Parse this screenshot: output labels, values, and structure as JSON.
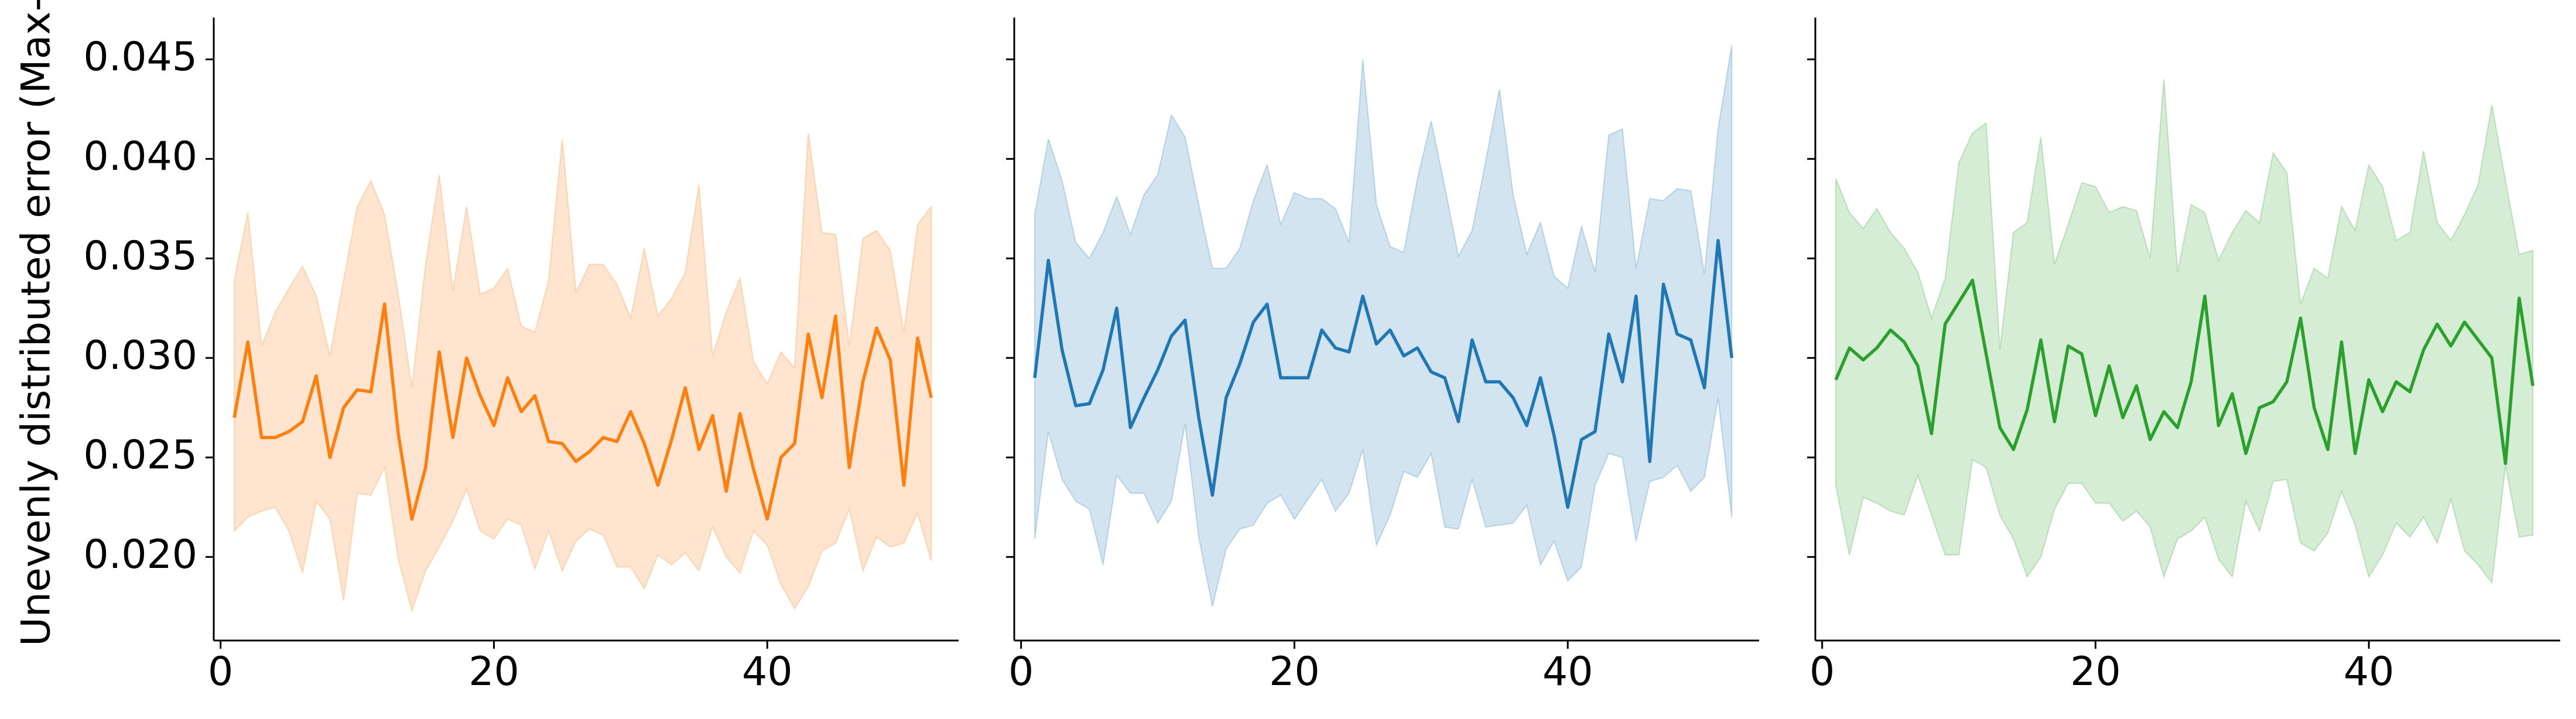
{
  "figure": {
    "ylabel": "Unevenly distributed error (Max-M"
  },
  "chart_data": [
    {
      "type": "line",
      "color": "#ff7f0e",
      "band_color": "#ff7f0e",
      "xlim": [
        -0.5,
        54
      ],
      "ylim": [
        0.0158,
        0.0471
      ],
      "x_ticks": [
        0,
        20,
        40
      ],
      "x_tick_labels": [
        "0",
        "20",
        "40"
      ],
      "y_ticks": [
        0.02,
        0.025,
        0.03,
        0.035,
        0.04,
        0.045
      ],
      "y_tick_labels": [
        "0.020",
        "0.025",
        "0.030",
        "0.035",
        "0.040",
        "0.045"
      ],
      "y_tick_labels_shown": true,
      "grid": false,
      "x": [
        1,
        2,
        3,
        4,
        5,
        6,
        7,
        8,
        9,
        10,
        11,
        12,
        13,
        14,
        15,
        16,
        17,
        18,
        19,
        20,
        21,
        22,
        23,
        24,
        25,
        26,
        27,
        28,
        29,
        30,
        31,
        32,
        33,
        34,
        35,
        36,
        37,
        38,
        39,
        40,
        41,
        42,
        43,
        44,
        45,
        46,
        47,
        48,
        49,
        50,
        51,
        52
      ],
      "mean": [
        0.027,
        0.0308,
        0.026,
        0.026,
        0.0263,
        0.0268,
        0.0291,
        0.025,
        0.0275,
        0.0284,
        0.0283,
        0.0327,
        0.0262,
        0.0219,
        0.0245,
        0.0303,
        0.026,
        0.03,
        0.0281,
        0.0266,
        0.029,
        0.0273,
        0.0281,
        0.0258,
        0.0257,
        0.0248,
        0.0253,
        0.026,
        0.0258,
        0.0273,
        0.0257,
        0.0236,
        0.0259,
        0.0285,
        0.0254,
        0.0271,
        0.0233,
        0.0272,
        0.0244,
        0.0219,
        0.025,
        0.0257,
        0.0312,
        0.028,
        0.0321,
        0.0245,
        0.0288,
        0.0315,
        0.0299,
        0.0236,
        0.031,
        0.028
      ],
      "upper": [
        0.0339,
        0.0373,
        0.0306,
        0.0323,
        0.0335,
        0.0346,
        0.0331,
        0.0301,
        0.0339,
        0.0376,
        0.0389,
        0.0372,
        0.0332,
        0.0285,
        0.0347,
        0.0392,
        0.0334,
        0.0376,
        0.0332,
        0.0335,
        0.0345,
        0.0316,
        0.0313,
        0.0339,
        0.041,
        0.0333,
        0.0347,
        0.0347,
        0.0337,
        0.032,
        0.0355,
        0.0321,
        0.033,
        0.0343,
        0.0387,
        0.0301,
        0.0323,
        0.034,
        0.0298,
        0.0287,
        0.0303,
        0.0295,
        0.0413,
        0.0363,
        0.0362,
        0.0306,
        0.036,
        0.0364,
        0.0354,
        0.0313,
        0.0367,
        0.0376
      ],
      "lower": [
        0.0213,
        0.022,
        0.0223,
        0.0225,
        0.0213,
        0.0192,
        0.0228,
        0.0219,
        0.0178,
        0.0232,
        0.0231,
        0.0245,
        0.0199,
        0.0173,
        0.0193,
        0.0205,
        0.0218,
        0.0234,
        0.0213,
        0.0209,
        0.0219,
        0.0216,
        0.0194,
        0.0213,
        0.0193,
        0.0208,
        0.0214,
        0.0211,
        0.0195,
        0.0195,
        0.0184,
        0.0201,
        0.0196,
        0.0202,
        0.0193,
        0.0215,
        0.02,
        0.0192,
        0.0213,
        0.0206,
        0.0186,
        0.0174,
        0.0185,
        0.0203,
        0.0207,
        0.0224,
        0.0193,
        0.021,
        0.0205,
        0.0207,
        0.0222,
        0.0198
      ]
    },
    {
      "type": "line",
      "color": "#1f77b4",
      "band_color": "#1f77b4",
      "xlim": [
        -0.5,
        54
      ],
      "ylim": [
        0.0158,
        0.0471
      ],
      "x_ticks": [
        0,
        20,
        40
      ],
      "x_tick_labels": [
        "0",
        "20",
        "40"
      ],
      "y_ticks": [
        0.02,
        0.025,
        0.03,
        0.035,
        0.04,
        0.045
      ],
      "y_tick_labels": [
        "",
        "",
        "",
        "",
        "",
        ""
      ],
      "y_tick_labels_shown": false,
      "grid": false,
      "x": [
        1,
        2,
        3,
        4,
        5,
        6,
        7,
        8,
        9,
        10,
        11,
        12,
        13,
        14,
        15,
        16,
        17,
        18,
        19,
        20,
        21,
        22,
        23,
        24,
        25,
        26,
        27,
        28,
        29,
        30,
        31,
        32,
        33,
        34,
        35,
        36,
        37,
        38,
        39,
        40,
        41,
        42,
        43,
        44,
        45,
        46,
        47,
        48,
        49,
        50,
        51,
        52
      ],
      "mean": [
        0.029,
        0.0349,
        0.0304,
        0.0276,
        0.0277,
        0.0294,
        0.0325,
        0.0265,
        0.028,
        0.0294,
        0.0311,
        0.0319,
        0.027,
        0.0231,
        0.028,
        0.0297,
        0.0318,
        0.0327,
        0.029,
        0.029,
        0.029,
        0.0314,
        0.0305,
        0.0303,
        0.0331,
        0.0307,
        0.0314,
        0.0301,
        0.0305,
        0.0293,
        0.029,
        0.0268,
        0.0309,
        0.0288,
        0.0288,
        0.028,
        0.0266,
        0.029,
        0.0261,
        0.0225,
        0.0259,
        0.0263,
        0.0312,
        0.0288,
        0.0331,
        0.0248,
        0.0337,
        0.0312,
        0.0309,
        0.0285,
        0.0359,
        0.03
      ],
      "upper": [
        0.0372,
        0.041,
        0.0389,
        0.0358,
        0.035,
        0.0363,
        0.0381,
        0.0362,
        0.0382,
        0.0392,
        0.0422,
        0.0411,
        0.0377,
        0.0345,
        0.0345,
        0.0355,
        0.0379,
        0.0397,
        0.0367,
        0.0383,
        0.038,
        0.038,
        0.0375,
        0.0358,
        0.045,
        0.0377,
        0.0356,
        0.0353,
        0.039,
        0.0419,
        0.0386,
        0.0351,
        0.0364,
        0.0399,
        0.0435,
        0.0382,
        0.0352,
        0.0368,
        0.0341,
        0.0335,
        0.0366,
        0.0343,
        0.0412,
        0.0415,
        0.0345,
        0.038,
        0.0379,
        0.0385,
        0.0384,
        0.0342,
        0.0415,
        0.0457
      ],
      "lower": [
        0.0209,
        0.0263,
        0.0239,
        0.0228,
        0.0224,
        0.0196,
        0.0241,
        0.0232,
        0.0232,
        0.0217,
        0.0228,
        0.0267,
        0.021,
        0.0175,
        0.0204,
        0.0214,
        0.0216,
        0.0227,
        0.0231,
        0.0219,
        0.0229,
        0.0239,
        0.0223,
        0.0232,
        0.0254,
        0.0206,
        0.0221,
        0.0243,
        0.024,
        0.0252,
        0.0215,
        0.0214,
        0.0239,
        0.0215,
        0.0216,
        0.0217,
        0.0226,
        0.0196,
        0.0208,
        0.0188,
        0.0195,
        0.0236,
        0.0252,
        0.025,
        0.0208,
        0.0238,
        0.024,
        0.0246,
        0.0233,
        0.024,
        0.028,
        0.022
      ]
    },
    {
      "type": "line",
      "color": "#2ca02c",
      "band_color": "#2ca02c",
      "xlim": [
        -0.5,
        54
      ],
      "ylim": [
        0.0158,
        0.0471
      ],
      "x_ticks": [
        0,
        20,
        40
      ],
      "x_tick_labels": [
        "0",
        "20",
        "40"
      ],
      "y_ticks": [
        0.02,
        0.025,
        0.03,
        0.035,
        0.04,
        0.045
      ],
      "y_tick_labels": [
        "",
        "",
        "",
        "",
        "",
        ""
      ],
      "y_tick_labels_shown": false,
      "grid": false,
      "x": [
        1,
        2,
        3,
        4,
        5,
        6,
        7,
        8,
        9,
        10,
        11,
        12,
        13,
        14,
        15,
        16,
        17,
        18,
        19,
        20,
        21,
        22,
        23,
        24,
        25,
        26,
        27,
        28,
        29,
        30,
        31,
        32,
        33,
        34,
        35,
        36,
        37,
        38,
        39,
        40,
        41,
        42,
        43,
        44,
        45,
        46,
        47,
        48,
        49,
        50,
        51,
        52
      ],
      "mean": [
        0.0289,
        0.0305,
        0.0299,
        0.0305,
        0.0314,
        0.0308,
        0.0296,
        0.0262,
        0.0317,
        0.0328,
        0.0339,
        0.0302,
        0.0265,
        0.0254,
        0.0274,
        0.0309,
        0.0268,
        0.0306,
        0.0302,
        0.0271,
        0.0296,
        0.027,
        0.0286,
        0.0259,
        0.0273,
        0.0265,
        0.0288,
        0.0331,
        0.0266,
        0.0282,
        0.0252,
        0.0275,
        0.0278,
        0.0288,
        0.032,
        0.0275,
        0.0254,
        0.0308,
        0.0252,
        0.0289,
        0.0273,
        0.0288,
        0.0283,
        0.0304,
        0.0317,
        0.0306,
        0.0318,
        0.0309,
        0.03,
        0.0247,
        0.033,
        0.0286
      ],
      "upper": [
        0.039,
        0.0373,
        0.0365,
        0.0375,
        0.0363,
        0.0355,
        0.0343,
        0.032,
        0.034,
        0.0398,
        0.0413,
        0.0418,
        0.0304,
        0.0363,
        0.0368,
        0.0411,
        0.0347,
        0.0367,
        0.0388,
        0.0386,
        0.0373,
        0.0376,
        0.0374,
        0.035,
        0.044,
        0.0343,
        0.0377,
        0.0373,
        0.0349,
        0.0363,
        0.0374,
        0.0368,
        0.0403,
        0.0393,
        0.0327,
        0.0345,
        0.034,
        0.0376,
        0.0364,
        0.0397,
        0.0386,
        0.0359,
        0.0363,
        0.0404,
        0.0368,
        0.0359,
        0.0372,
        0.0387,
        0.0427,
        0.0389,
        0.0352,
        0.0354
      ],
      "lower": [
        0.0236,
        0.0201,
        0.023,
        0.0227,
        0.0223,
        0.0221,
        0.0241,
        0.0221,
        0.0201,
        0.0201,
        0.0249,
        0.0245,
        0.0221,
        0.0209,
        0.019,
        0.02,
        0.0224,
        0.0237,
        0.0237,
        0.0227,
        0.0227,
        0.0218,
        0.0223,
        0.0215,
        0.019,
        0.0209,
        0.0213,
        0.022,
        0.0199,
        0.019,
        0.0228,
        0.0213,
        0.0238,
        0.0239,
        0.0207,
        0.0203,
        0.0212,
        0.0233,
        0.0216,
        0.019,
        0.0201,
        0.0217,
        0.021,
        0.022,
        0.0207,
        0.0229,
        0.0203,
        0.0196,
        0.0187,
        0.0246,
        0.021,
        0.0211
      ]
    }
  ]
}
